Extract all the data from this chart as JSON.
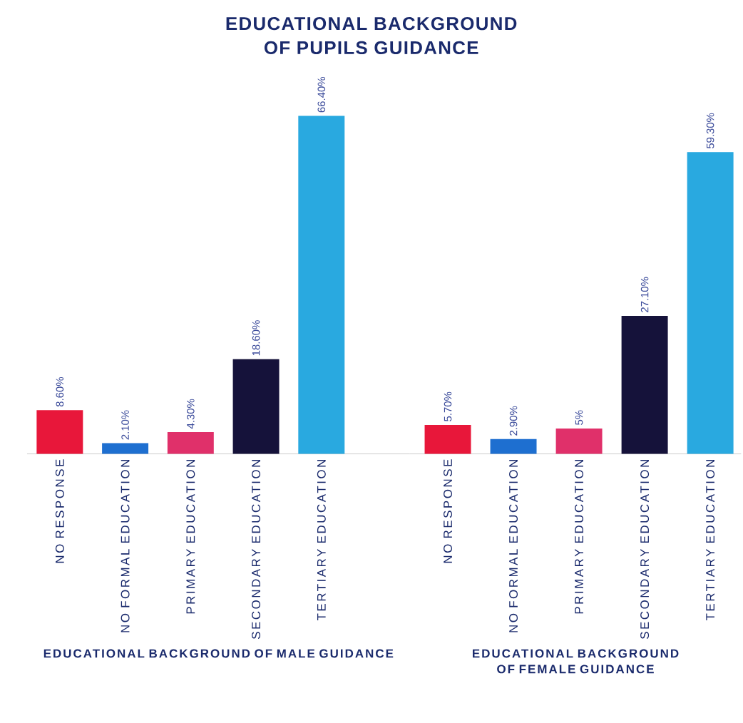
{
  "chart_data": [
    {
      "type": "bar",
      "title": "EDUCATIONAL BACKGROUND OF PUPILS GUIDANCE",
      "xlabel": "EDUCATIONAL BACKGROUND OF MALE GUIDANCE",
      "categories": [
        "NO RESPONSE",
        "NO FORMAL EDUCATION",
        "PRIMARY EDUCATION",
        "SECONDARY EDUCATION",
        "TERTIARY EDUCATION"
      ],
      "values": [
        8.6,
        2.1,
        4.3,
        18.6,
        66.4
      ],
      "value_labels": [
        "8.60%",
        "2.10%",
        "4.30%",
        "18.60%",
        "66.40%"
      ],
      "colors": [
        "#e8173a",
        "#1e6fd0",
        "#e0306a",
        "#15123a",
        "#29a9e0"
      ],
      "tick_labels": "x"
    },
    {
      "type": "bar",
      "xlabel": "EDUCATIONAL BACKGROUND OF FEMALE GUIDANCE",
      "categories": [
        "NO RESPONSE",
        "NO FORMAL EDUCATION",
        "PRIMARY EDUCATION",
        "SECONDARY EDUCATION",
        "TERTIARY EDUCATION"
      ],
      "values": [
        5.7,
        2.9,
        5,
        27.1,
        59.3
      ],
      "value_labels": [
        "5.70%",
        "2.90%",
        "5%",
        "27.10%",
        "59.30%"
      ],
      "colors": [
        "#e8173a",
        "#1e6fd0",
        "#e0306a",
        "#15123a",
        "#29a9e0"
      ],
      "tick_labels": "x"
    }
  ]
}
